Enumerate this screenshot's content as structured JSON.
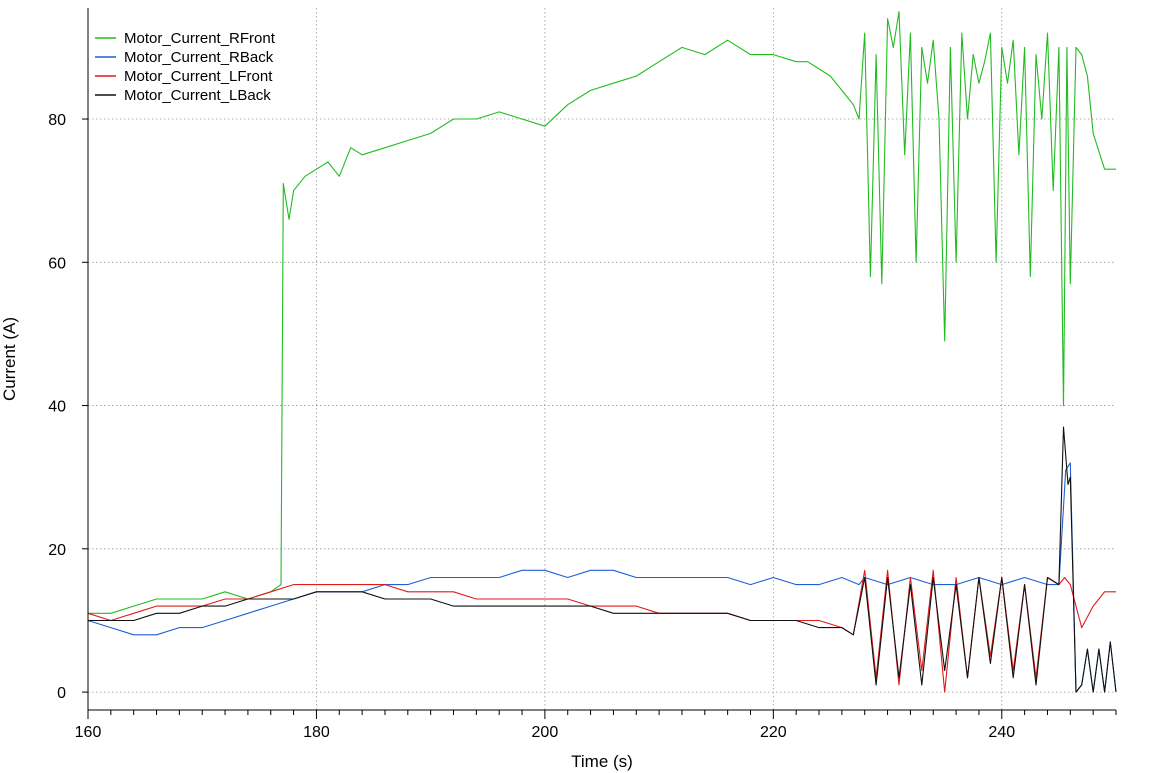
{
  "chart_data": {
    "type": "line",
    "xlabel": "Time (s)",
    "ylabel": "Current (A)",
    "xlim": [
      160,
      250
    ],
    "ylim": [
      -2.5,
      95.5
    ],
    "xticks": [
      160,
      180,
      200,
      220,
      240
    ],
    "yticks": [
      0,
      20,
      40,
      60,
      80
    ],
    "grid": true,
    "legend_position": "top-left",
    "series": [
      {
        "name": "Motor_Current_RFront",
        "color": "#22bb22",
        "x": [
          160,
          162,
          164,
          166,
          168,
          170,
          172,
          174,
          176,
          176.9,
          177.1,
          177.6,
          178,
          179,
          180,
          181,
          182,
          183,
          184,
          186,
          188,
          190,
          192,
          194,
          196,
          198,
          200,
          202,
          204,
          206,
          208,
          210,
          212,
          214,
          216,
          218,
          220,
          222,
          223,
          224,
          225,
          226,
          227,
          227.5,
          228,
          228.5,
          229,
          229.5,
          230,
          230.5,
          231,
          231.5,
          232,
          232.5,
          233,
          233.5,
          234,
          234.5,
          235,
          235.5,
          236,
          236.5,
          237,
          237.5,
          238,
          238.5,
          239,
          239.5,
          240,
          240.5,
          241,
          241.5,
          242,
          242.5,
          243,
          243.5,
          244,
          244.5,
          245,
          245.4,
          245.7,
          246,
          246.5,
          247,
          247.5,
          248,
          249,
          250
        ],
        "values": [
          11,
          11,
          12,
          13,
          13,
          13,
          14,
          13,
          14,
          15,
          71,
          66,
          70,
          72,
          73,
          74,
          72,
          76,
          75,
          76,
          77,
          78,
          80,
          80,
          81,
          80,
          79,
          82,
          84,
          85,
          86,
          88,
          90,
          89,
          91,
          89,
          89,
          88,
          88,
          87,
          86,
          84,
          82,
          80,
          92,
          58,
          89,
          57,
          94,
          90,
          95,
          75,
          92,
          60,
          90,
          85,
          91,
          80,
          49,
          90,
          60,
          92,
          80,
          89,
          85,
          88,
          92,
          60,
          90,
          85,
          91,
          75,
          90,
          58,
          89,
          80,
          92,
          70,
          90,
          40,
          90,
          57,
          90,
          89,
          86,
          78,
          73,
          73
        ]
      },
      {
        "name": "Motor_Current_RBack",
        "color": "#1f5fd6",
        "x": [
          160,
          162,
          164,
          166,
          168,
          170,
          172,
          174,
          176,
          178,
          180,
          182,
          184,
          186,
          188,
          190,
          192,
          194,
          196,
          198,
          200,
          202,
          204,
          206,
          208,
          210,
          212,
          214,
          216,
          218,
          220,
          222,
          224,
          226,
          227.5,
          228,
          230,
          232,
          234,
          236,
          238,
          240,
          242,
          244,
          245,
          245.6,
          246,
          246.5,
          247,
          247.5,
          248,
          248.5,
          249,
          249.5,
          250
        ],
        "values": [
          10,
          9,
          8,
          8,
          9,
          9,
          10,
          11,
          12,
          13,
          14,
          14,
          14,
          15,
          15,
          16,
          16,
          16,
          16,
          17,
          17,
          16,
          17,
          17,
          16,
          16,
          16,
          16,
          16,
          15,
          16,
          15,
          15,
          16,
          15,
          16,
          15,
          16,
          15,
          15,
          16,
          15,
          16,
          15,
          15,
          31,
          32,
          0,
          1,
          6,
          0,
          6,
          0,
          7,
          0
        ]
      },
      {
        "name": "Motor_Current_LFront",
        "color": "#e01b1b",
        "x": [
          160,
          162,
          164,
          166,
          168,
          170,
          172,
          174,
          176,
          178,
          180,
          182,
          184,
          186,
          188,
          190,
          192,
          194,
          196,
          198,
          200,
          202,
          204,
          206,
          208,
          210,
          212,
          214,
          216,
          218,
          220,
          222,
          224,
          226,
          227,
          228,
          229,
          230,
          231,
          232,
          233,
          234,
          235,
          236,
          237,
          238,
          239,
          240,
          241,
          242,
          243,
          244,
          245,
          245.5,
          246,
          247,
          248,
          249,
          250
        ],
        "values": [
          11,
          10,
          11,
          12,
          12,
          12,
          13,
          13,
          14,
          15,
          15,
          15,
          15,
          15,
          14,
          14,
          14,
          13,
          13,
          13,
          13,
          13,
          12,
          12,
          12,
          11,
          11,
          11,
          11,
          10,
          10,
          10,
          10,
          9,
          8,
          17,
          2,
          17,
          1,
          16,
          3,
          17,
          0,
          16,
          2,
          16,
          5,
          16,
          3,
          15,
          2,
          16,
          15,
          16,
          15,
          9,
          12,
          14,
          14
        ]
      },
      {
        "name": "Motor_Current_LBack",
        "color": "#111111",
        "x": [
          160,
          162,
          164,
          166,
          168,
          170,
          172,
          174,
          176,
          178,
          180,
          182,
          184,
          186,
          188,
          190,
          192,
          194,
          196,
          198,
          200,
          202,
          204,
          206,
          208,
          210,
          212,
          214,
          216,
          218,
          220,
          222,
          224,
          226,
          227,
          228,
          229,
          230,
          231,
          232,
          233,
          234,
          235,
          236,
          237,
          238,
          239,
          240,
          241,
          242,
          243,
          244,
          245,
          245.4,
          245.8,
          246,
          246.5,
          247,
          247.5,
          248,
          248.5,
          249,
          249.5,
          250
        ],
        "values": [
          10,
          10,
          10,
          11,
          11,
          12,
          12,
          13,
          13,
          13,
          14,
          14,
          14,
          13,
          13,
          13,
          12,
          12,
          12,
          12,
          12,
          12,
          12,
          11,
          11,
          11,
          11,
          11,
          11,
          10,
          10,
          10,
          9,
          9,
          8,
          16,
          1,
          16,
          2,
          15,
          1,
          16,
          3,
          15,
          2,
          16,
          4,
          16,
          2,
          15,
          1,
          16,
          15,
          37,
          29,
          30,
          0,
          1,
          6,
          0,
          6,
          0,
          7,
          0
        ]
      }
    ]
  }
}
